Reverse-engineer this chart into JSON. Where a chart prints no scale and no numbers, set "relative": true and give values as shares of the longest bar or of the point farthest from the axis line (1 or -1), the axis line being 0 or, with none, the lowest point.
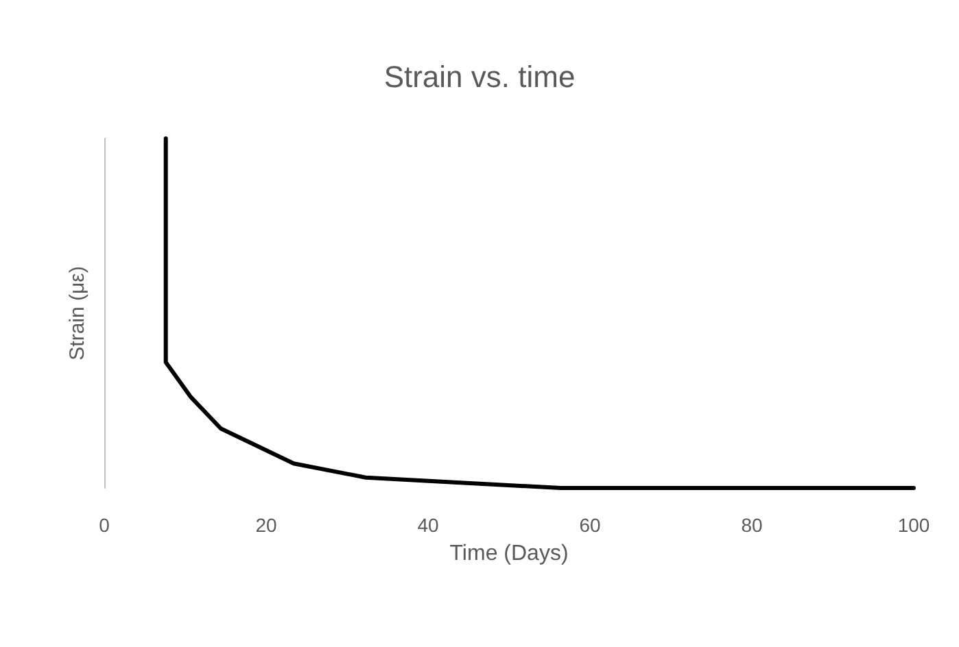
{
  "chart_data": {
    "type": "line",
    "title": "Strain vs. time",
    "xlabel": "Time (Days)",
    "ylabel": "Strain (με)",
    "relative": true,
    "x": [
      7.6,
      7.6,
      10.7,
      14.4,
      23.4,
      32.3,
      44,
      56.4,
      100
    ],
    "series": [
      {
        "color": "#000000",
        "values": [
          1,
          0.36,
          0.26,
          0.17,
          0.07,
          0.03,
          0.015,
          0,
          0
        ]
      }
    ],
    "xlim": [
      0,
      100
    ],
    "xticks": [
      0,
      20,
      40,
      60,
      80,
      100
    ],
    "marker": "none",
    "line_style": "solid"
  }
}
